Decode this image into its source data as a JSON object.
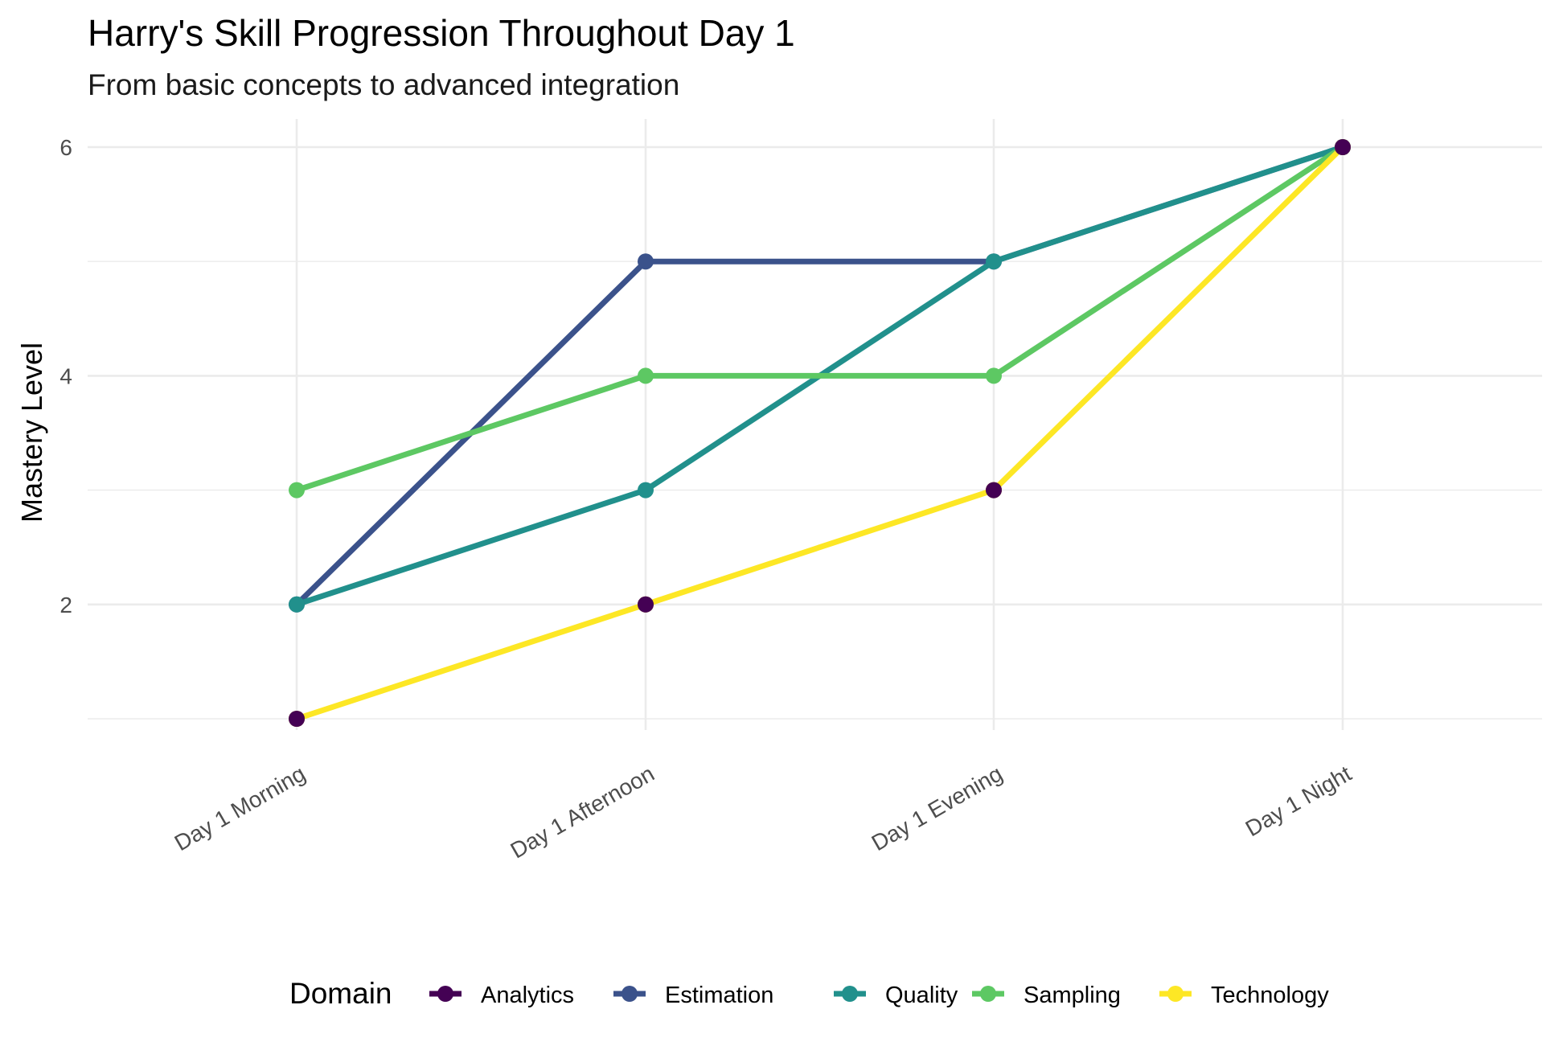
{
  "chart_data": {
    "type": "line",
    "title": "Harry's Skill Progression Throughout Day 1",
    "subtitle": "From basic concepts to advanced integration",
    "xlabel": "",
    "ylabel": "Mastery Level",
    "categories": [
      "Day 1 Morning",
      "Day 1 Afternoon",
      "Day 1 Evening",
      "Day 1 Night"
    ],
    "ylim": [
      0.8,
      6.25
    ],
    "yticks": [
      2,
      4,
      6
    ],
    "grid": true,
    "legend": {
      "title": "Domain",
      "position": "bottom"
    },
    "series": [
      {
        "name": "Analytics",
        "color": "#440154",
        "values": [
          null,
          null,
          null,
          null
        ],
        "points": [
          [
            0,
            1
          ],
          [
            1,
            2
          ],
          [
            2,
            3
          ],
          [
            3,
            6
          ]
        ]
      },
      {
        "name": "Estimation",
        "color": "#3B528B",
        "values": [
          2,
          5,
          5,
          6
        ]
      },
      {
        "name": "Quality",
        "color": "#21908C",
        "values": [
          2,
          3,
          5,
          6
        ]
      },
      {
        "name": "Sampling",
        "color": "#5DC863",
        "values": [
          3,
          4,
          4,
          6
        ]
      },
      {
        "name": "Technology",
        "color": "#FDE725",
        "values": [
          1,
          2,
          3,
          6
        ]
      }
    ]
  }
}
